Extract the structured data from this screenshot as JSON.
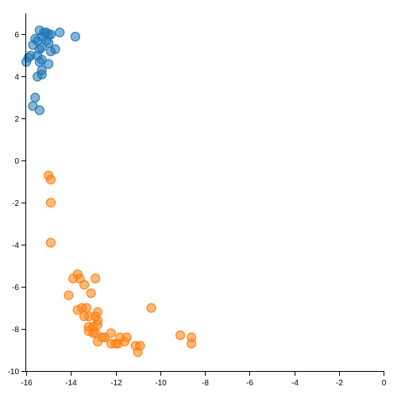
{
  "chart_data": {
    "type": "scatter",
    "title": "",
    "xlabel": "",
    "ylabel": "",
    "xlim": [
      -16,
      0
    ],
    "ylim": [
      -10,
      7
    ],
    "x_ticks": [
      -16,
      -14,
      -12,
      -10,
      -8,
      -6,
      -4,
      -2,
      0
    ],
    "y_ticks": [
      -10,
      -8,
      -6,
      -4,
      -2,
      0,
      2,
      4,
      6
    ],
    "x_tick_labels": [
      "-16",
      "-14",
      "-12",
      "-10",
      "-8",
      "-6",
      "-4",
      "-2",
      "0"
    ],
    "y_tick_labels": [
      "-10",
      "-8",
      "-6",
      "-4",
      "-2",
      "0",
      "2",
      "4",
      "6"
    ],
    "grid": false,
    "legend": "none",
    "series": [
      {
        "color": "#1f77b4",
        "points": [
          {
            "x": -15.4,
            "y": 6.2
          },
          {
            "x": -15.2,
            "y": 6.1
          },
          {
            "x": -15.1,
            "y": 6.1
          },
          {
            "x": -14.5,
            "y": 6.1
          },
          {
            "x": -13.8,
            "y": 5.9
          },
          {
            "x": -15.0,
            "y": 6.0
          },
          {
            "x": -14.9,
            "y": 6.0
          },
          {
            "x": -15.3,
            "y": 5.9
          },
          {
            "x": -15.6,
            "y": 5.8
          },
          {
            "x": -15.5,
            "y": 5.7
          },
          {
            "x": -15.1,
            "y": 5.7
          },
          {
            "x": -15.0,
            "y": 5.6
          },
          {
            "x": -15.7,
            "y": 5.5
          },
          {
            "x": -15.3,
            "y": 5.4
          },
          {
            "x": -14.7,
            "y": 5.3
          },
          {
            "x": -15.4,
            "y": 5.3
          },
          {
            "x": -14.9,
            "y": 5.2
          },
          {
            "x": -15.8,
            "y": 5.0
          },
          {
            "x": -15.5,
            "y": 5.0
          },
          {
            "x": -15.9,
            "y": 4.9
          },
          {
            "x": -15.3,
            "y": 4.8
          },
          {
            "x": -15.4,
            "y": 4.7
          },
          {
            "x": -16.0,
            "y": 4.7
          },
          {
            "x": -15.0,
            "y": 4.6
          },
          {
            "x": -15.3,
            "y": 4.3
          },
          {
            "x": -15.3,
            "y": 4.1
          },
          {
            "x": -15.5,
            "y": 4.0
          },
          {
            "x": -15.6,
            "y": 3.0
          },
          {
            "x": -15.7,
            "y": 2.6
          },
          {
            "x": -15.4,
            "y": 2.4
          }
        ]
      },
      {
        "color": "#ff7f0e",
        "points": [
          {
            "x": -15.0,
            "y": -0.7
          },
          {
            "x": -14.9,
            "y": -0.9
          },
          {
            "x": -14.9,
            "y": -2.0
          },
          {
            "x": -14.9,
            "y": -3.9
          },
          {
            "x": -13.7,
            "y": -5.4
          },
          {
            "x": -13.9,
            "y": -5.6
          },
          {
            "x": -13.6,
            "y": -5.6
          },
          {
            "x": -12.9,
            "y": -5.6
          },
          {
            "x": -13.4,
            "y": -5.9
          },
          {
            "x": -14.1,
            "y": -6.4
          },
          {
            "x": -13.1,
            "y": -6.3
          },
          {
            "x": -10.4,
            "y": -7.0
          },
          {
            "x": -13.7,
            "y": -7.1
          },
          {
            "x": -13.5,
            "y": -7.0
          },
          {
            "x": -13.3,
            "y": -7.0
          },
          {
            "x": -12.8,
            "y": -7.2
          },
          {
            "x": -13.4,
            "y": -7.4
          },
          {
            "x": -13.2,
            "y": -7.4
          },
          {
            "x": -12.9,
            "y": -7.4
          },
          {
            "x": -12.8,
            "y": -7.6
          },
          {
            "x": -13.2,
            "y": -7.9
          },
          {
            "x": -13.0,
            "y": -7.9
          },
          {
            "x": -12.8,
            "y": -7.8
          },
          {
            "x": -13.2,
            "y": -8.1
          },
          {
            "x": -13.0,
            "y": -8.2
          },
          {
            "x": -12.9,
            "y": -8.2
          },
          {
            "x": -12.6,
            "y": -8.4
          },
          {
            "x": -12.5,
            "y": -8.4
          },
          {
            "x": -12.8,
            "y": -8.6
          },
          {
            "x": -12.2,
            "y": -8.2
          },
          {
            "x": -11.8,
            "y": -8.4
          },
          {
            "x": -11.5,
            "y": -8.4
          },
          {
            "x": -11.6,
            "y": -8.6
          },
          {
            "x": -12.2,
            "y": -8.7
          },
          {
            "x": -12.0,
            "y": -8.7
          },
          {
            "x": -11.9,
            "y": -8.7
          },
          {
            "x": -11.1,
            "y": -8.8
          },
          {
            "x": -10.9,
            "y": -8.8
          },
          {
            "x": -11.0,
            "y": -9.1
          },
          {
            "x": -9.1,
            "y": -8.3
          },
          {
            "x": -8.6,
            "y": -8.4
          },
          {
            "x": -8.6,
            "y": -8.7
          }
        ]
      }
    ]
  }
}
